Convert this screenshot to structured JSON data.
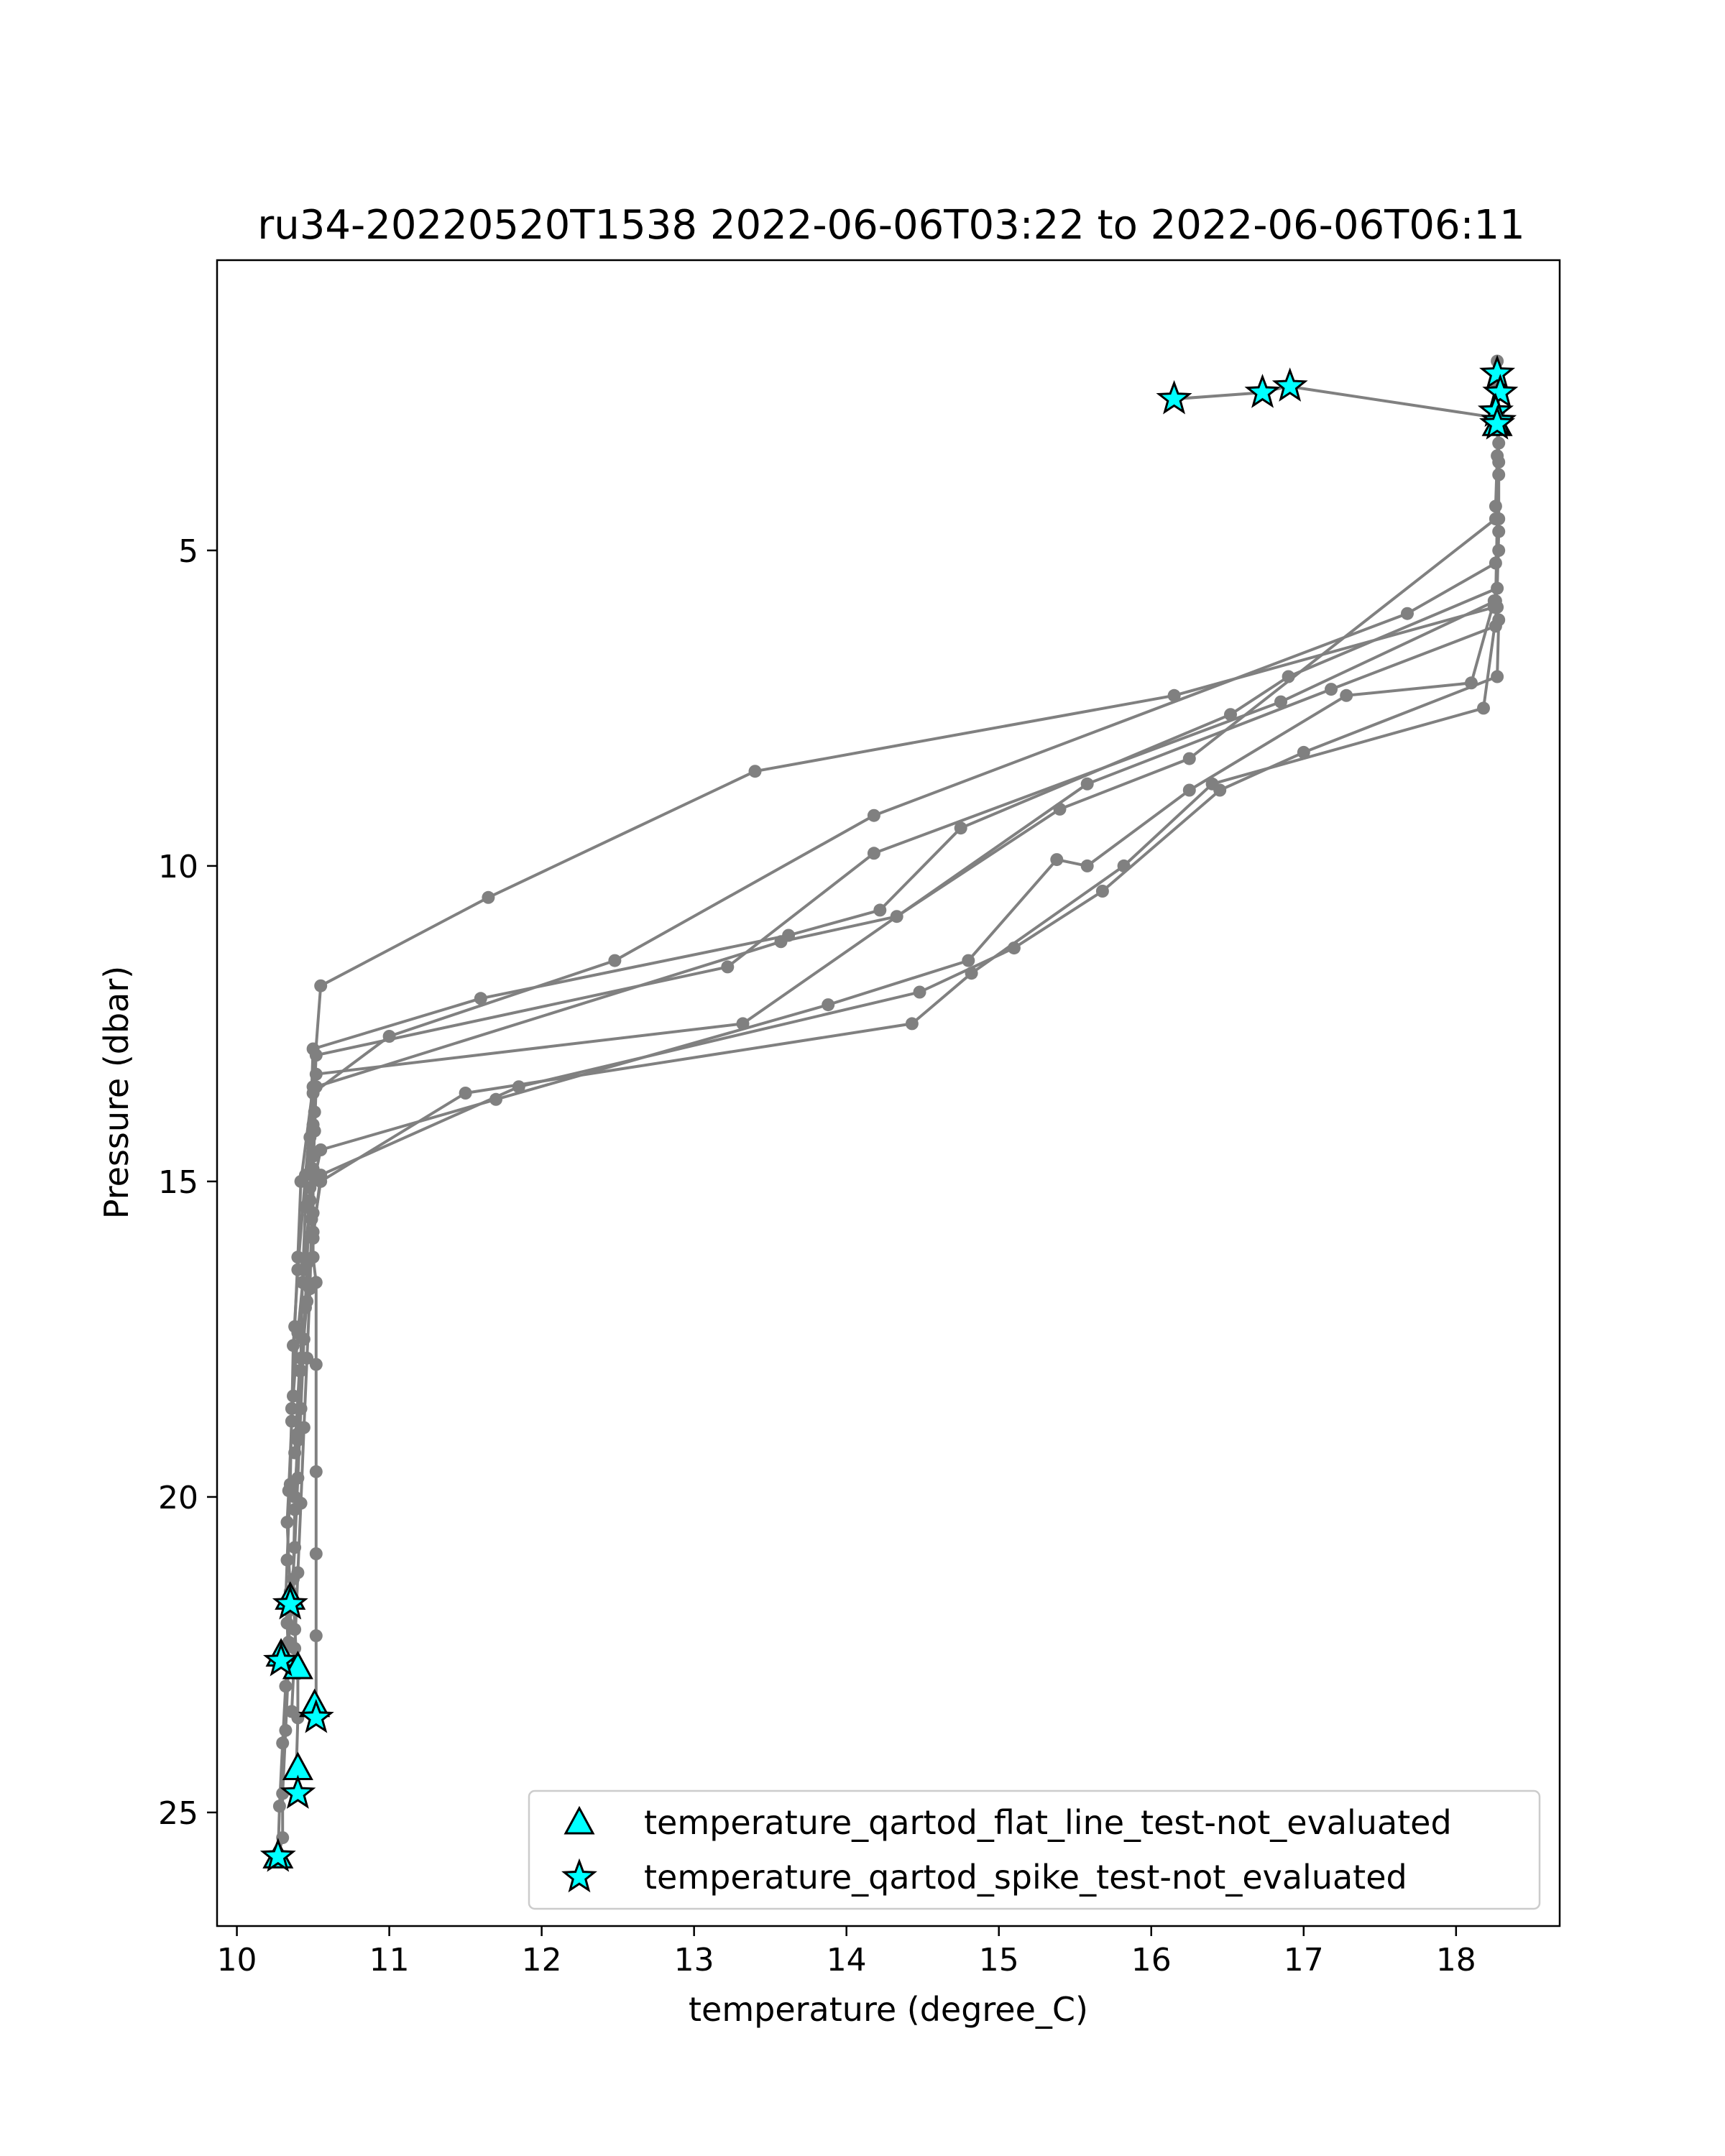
{
  "chart_data": {
    "type": "scatter",
    "title": "ru34-20220520T1538 2022-06-06T03:22 to 2022-06-06T06:11",
    "xlabel": "temperature (degree_C)",
    "ylabel": "Pressure (dbar)",
    "xlim": [
      9.87,
      18.68
    ],
    "ylim": [
      26.8,
      0.4
    ],
    "y_inverted": true,
    "x_ticks": [
      10,
      11,
      12,
      13,
      14,
      15,
      16,
      17,
      18
    ],
    "y_ticks": [
      5,
      10,
      15,
      20,
      25
    ],
    "grid": false,
    "legend_position": "lower-right",
    "colors": {
      "profile_line": "#808080",
      "flag_fill": "#00ffff",
      "flag_edge": "#000000"
    },
    "profile_series": [
      {
        "x": [
          18.27,
          18.28,
          18.27,
          18.26,
          18.28,
          18.25,
          16.15,
          13.4,
          11.65,
          10.55,
          10.5,
          10.42,
          10.4,
          10.38,
          10.36,
          10.35,
          10.33,
          10.32,
          10.33,
          10.34,
          10.32,
          10.3,
          10.3,
          10.27
        ],
        "y": [
          2.0,
          2.8,
          3.5,
          4.3,
          5.0,
          5.9,
          7.3,
          8.5,
          10.5,
          11.9,
          13.5,
          15.0,
          16.2,
          17.3,
          18.6,
          19.8,
          21.0,
          21.7,
          22.0,
          22.6,
          23.7,
          24.7,
          25.4,
          25.7
        ]
      },
      {
        "x": [
          16.15,
          16.72,
          16.9,
          18.27,
          18.28,
          18.26,
          17.68,
          14.18,
          12.48,
          11.0,
          10.5,
          10.45,
          10.4,
          10.37,
          10.36,
          10.34,
          10.33,
          10.35,
          10.34
        ],
        "y": [
          2.6,
          2.5,
          2.4,
          2.9,
          4.5,
          5.2,
          6.0,
          9.2,
          11.5,
          12.7,
          13.6,
          14.9,
          16.4,
          17.6,
          18.8,
          19.9,
          20.4,
          21.5,
          21.8
        ]
      },
      {
        "x": [
          18.27,
          18.28,
          18.28,
          18.27,
          16.9,
          16.52,
          14.75,
          14.22,
          13.62,
          11.6,
          10.5,
          10.48,
          10.45,
          10.43,
          10.42,
          10.4,
          10.38,
          10.37,
          10.38,
          10.4,
          10.4,
          10.39,
          10.4
        ],
        "y": [
          2.9,
          3.8,
          4.7,
          5.6,
          7.0,
          7.6,
          9.4,
          10.7,
          11.1,
          12.1,
          12.9,
          14.3,
          15.4,
          16.6,
          17.8,
          19.0,
          20.2,
          21.3,
          22.1,
          22.8,
          23.5,
          24.3,
          24.7
        ]
      },
      {
        "x": [
          18.27,
          18.28,
          18.26,
          16.85,
          14.18,
          13.22,
          10.52,
          10.5,
          10.48,
          10.46,
          10.44,
          10.42,
          10.4,
          10.38,
          10.36,
          10.34,
          10.32,
          10.3,
          10.28,
          10.27
        ],
        "y": [
          2.4,
          3.3,
          5.8,
          7.4,
          9.8,
          11.6,
          13.0,
          14.1,
          15.1,
          16.3,
          17.5,
          18.6,
          19.7,
          20.8,
          21.6,
          22.3,
          23.0,
          23.9,
          24.9,
          25.7
        ]
      },
      {
        "x": [
          18.28,
          18.26,
          17.18,
          15.58,
          13.32,
          10.52,
          10.51,
          10.5,
          10.49,
          10.48,
          10.46,
          10.44,
          10.42,
          10.4,
          10.38,
          10.36
        ],
        "y": [
          3.6,
          6.2,
          7.2,
          8.7,
          12.5,
          13.3,
          13.9,
          14.6,
          15.6,
          16.7,
          17.8,
          18.9,
          20.1,
          21.2,
          22.4,
          23.4
        ]
      },
      {
        "x": [
          18.26,
          16.25,
          15.4,
          14.33,
          13.57,
          10.52,
          10.51,
          10.5,
          10.5,
          10.5,
          10.52,
          10.52,
          10.52,
          10.52,
          10.52,
          10.52,
          10.51
        ],
        "y": [
          4.5,
          8.3,
          9.1,
          10.8,
          11.2,
          13.5,
          14.2,
          14.8,
          15.5,
          16.2,
          16.6,
          17.9,
          19.6,
          20.9,
          22.2,
          23.4,
          23.5
        ]
      },
      {
        "x": [
          18.25,
          18.1,
          17.28,
          16.25,
          15.58,
          15.38,
          14.8,
          13.88,
          11.7,
          10.55,
          10.48,
          10.44,
          10.4,
          10.37
        ],
        "y": [
          5.8,
          7.1,
          7.3,
          8.8,
          10.0,
          9.9,
          11.5,
          12.2,
          13.7,
          14.5,
          15.3,
          16.4,
          17.4,
          18.4
        ]
      },
      {
        "x": [
          18.27,
          18.18,
          16.4,
          15.82,
          14.82,
          14.43,
          11.5,
          10.55,
          10.5,
          10.46,
          10.42,
          10.4,
          10.38
        ],
        "y": [
          5.9,
          7.5,
          8.7,
          10.0,
          11.7,
          12.5,
          13.6,
          15.0,
          15.8,
          16.9,
          18.0,
          19.1,
          20.0
        ]
      },
      {
        "x": [
          18.28,
          18.27,
          17.0,
          16.45,
          15.68,
          15.1,
          14.48,
          11.85,
          10.55,
          10.5,
          10.45,
          10.41,
          10.38
        ],
        "y": [
          6.1,
          7.0,
          8.2,
          8.8,
          10.4,
          11.3,
          12.0,
          13.5,
          14.9,
          15.9,
          17.0,
          18.0,
          19.3
        ]
      }
    ],
    "flagged_points": [
      {
        "series": "temperature_qartod_flat_line_test-not_evaluated",
        "marker": "triangle",
        "x": [
          10.35,
          10.29,
          10.4,
          10.51,
          10.4,
          10.27,
          18.27
        ],
        "y": [
          21.6,
          22.5,
          22.7,
          23.3,
          24.3,
          25.7,
          3.0
        ]
      },
      {
        "series": "temperature_qartod_spike_test-not_evaluated",
        "marker": "star",
        "x": [
          16.15,
          16.73,
          16.91,
          18.27,
          18.29,
          18.26,
          18.28,
          18.27,
          10.35,
          10.29,
          10.52,
          10.4,
          10.27
        ],
        "y": [
          2.6,
          2.5,
          2.4,
          2.2,
          2.5,
          2.8,
          2.95,
          3.0,
          21.7,
          22.6,
          23.5,
          24.7,
          25.7
        ]
      }
    ],
    "legend": [
      {
        "label": "temperature_qartod_flat_line_test-not_evaluated",
        "marker": "triangle"
      },
      {
        "label": "temperature_qartod_spike_test-not_evaluated",
        "marker": "star"
      }
    ]
  }
}
